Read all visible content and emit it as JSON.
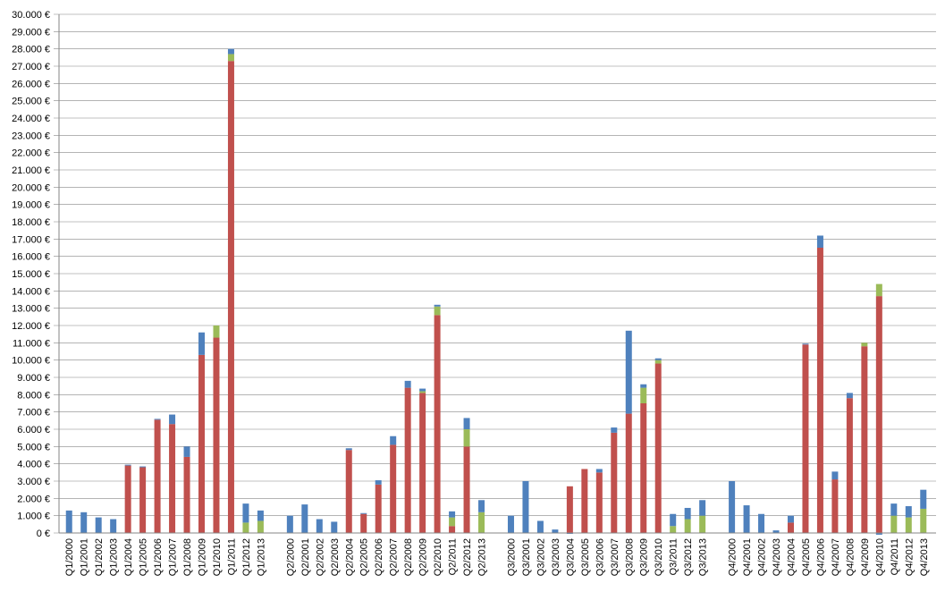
{
  "chart_data": {
    "type": "stacked-bar",
    "categories": [
      "Q1/2000",
      "Q1/2001",
      "Q1/2002",
      "Q1/2003",
      "Q1/2004",
      "Q1/2005",
      "Q1/2006",
      "Q1/2007",
      "Q1/2008",
      "Q1/2009",
      "Q1/2010",
      "Q1/2011",
      "Q1/2012",
      "Q1/2013",
      null,
      "Q2/2000",
      "Q2/2001",
      "Q2/2002",
      "Q2/2003",
      "Q2/2004",
      "Q2/2005",
      "Q2/2006",
      "Q2/2007",
      "Q2/2008",
      "Q2/2009",
      "Q2/2010",
      "Q2/2011",
      "Q2/2012",
      "Q2/2013",
      null,
      "Q3/2000",
      "Q3/2001",
      "Q3/2002",
      "Q3/2003",
      "Q3/2004",
      "Q3/2005",
      "Q3/2006",
      "Q3/2007",
      "Q3/2008",
      "Q3/2009",
      "Q3/2010",
      "Q3/2011",
      "Q3/2012",
      "Q3/2013",
      null,
      "Q4/2000",
      "Q4/2001",
      "Q4/2002",
      "Q4/2003",
      "Q4/2004",
      "Q4/2005",
      "Q4/2006",
      "Q4/2007",
      "Q4/2008",
      "Q4/2009",
      "Q4/2010",
      "Q4/2011",
      "Q4/2012",
      "Q4/2013"
    ],
    "series": [
      {
        "color": "#c0504d",
        "values": [
          0,
          0,
          0,
          0,
          3900,
          3800,
          6550,
          6300,
          4400,
          10300,
          11300,
          27300,
          0,
          0,
          null,
          0,
          0,
          0,
          0,
          4800,
          1100,
          2800,
          5100,
          8400,
          8100,
          12600,
          400,
          5000,
          0,
          null,
          0,
          0,
          0,
          0,
          2700,
          3700,
          3500,
          5800,
          6900,
          7500,
          9800,
          0,
          0,
          0,
          null,
          0,
          0,
          0,
          0,
          600,
          10900,
          16500,
          3100,
          7800,
          10800,
          13700,
          0,
          0,
          0
        ]
      },
      {
        "color": "#9bbb59",
        "values": [
          0,
          0,
          0,
          0,
          0,
          0,
          0,
          0,
          0,
          0,
          700,
          400,
          600,
          700,
          null,
          0,
          0,
          0,
          0,
          0,
          0,
          0,
          0,
          0,
          100,
          500,
          500,
          1000,
          1200,
          null,
          0,
          0,
          0,
          0,
          0,
          0,
          0,
          0,
          0,
          900,
          200,
          400,
          800,
          1000,
          null,
          0,
          0,
          0,
          0,
          0,
          0,
          0,
          0,
          0,
          200,
          700,
          1000,
          900,
          1400
        ]
      },
      {
        "color": "#4f81bd",
        "values": [
          1300,
          1200,
          900,
          800,
          50,
          50,
          50,
          550,
          600,
          1300,
          0,
          300,
          1100,
          600,
          null,
          1000,
          1650,
          800,
          650,
          100,
          50,
          250,
          500,
          400,
          150,
          100,
          350,
          650,
          700,
          null,
          1000,
          3000,
          700,
          200,
          -50,
          0,
          200,
          300,
          4800,
          200,
          100,
          700,
          650,
          900,
          null,
          3000,
          1600,
          1100,
          150,
          400,
          50,
          700,
          450,
          300,
          0,
          -100,
          700,
          650,
          1100
        ]
      }
    ],
    "ylim": [
      0,
      30000
    ],
    "yticks": [
      {
        "value": 0,
        "label": "0 €"
      },
      {
        "value": 1000,
        "label": "1.000 €"
      },
      {
        "value": 2000,
        "label": "2.000 €"
      },
      {
        "value": 3000,
        "label": "3.000 €"
      },
      {
        "value": 4000,
        "label": "4.000 €"
      },
      {
        "value": 5000,
        "label": "5.000 €"
      },
      {
        "value": 6000,
        "label": "6.000 €"
      },
      {
        "value": 7000,
        "label": "7.000 €"
      },
      {
        "value": 8000,
        "label": "8.000 €"
      },
      {
        "value": 9000,
        "label": "9.000 €"
      },
      {
        "value": 10000,
        "label": "10.000 €"
      },
      {
        "value": 11000,
        "label": "11.000 €"
      },
      {
        "value": 12000,
        "label": "12.000 €"
      },
      {
        "value": 13000,
        "label": "13.000 €"
      },
      {
        "value": 14000,
        "label": "14.000 €"
      },
      {
        "value": 15000,
        "label": "15.000 €"
      },
      {
        "value": 16000,
        "label": "16.000 €"
      },
      {
        "value": 17000,
        "label": "17.000 €"
      },
      {
        "value": 18000,
        "label": "18.000 €"
      },
      {
        "value": 19000,
        "label": "19.000 €"
      },
      {
        "value": 20000,
        "label": "20.000 €"
      },
      {
        "value": 21000,
        "label": "21.000 €"
      },
      {
        "value": 22000,
        "label": "22.000 €"
      },
      {
        "value": 23000,
        "label": "23.000 €"
      },
      {
        "value": 24000,
        "label": "24.000 €"
      },
      {
        "value": 25000,
        "label": "25.000 €"
      },
      {
        "value": 26000,
        "label": "26.000 €"
      },
      {
        "value": 27000,
        "label": "27.000 €"
      },
      {
        "value": 28000,
        "label": "28.000 €"
      },
      {
        "value": 29000,
        "label": "29.000 €"
      },
      {
        "value": 30000,
        "label": "30.000 €"
      }
    ],
    "grid": true
  }
}
